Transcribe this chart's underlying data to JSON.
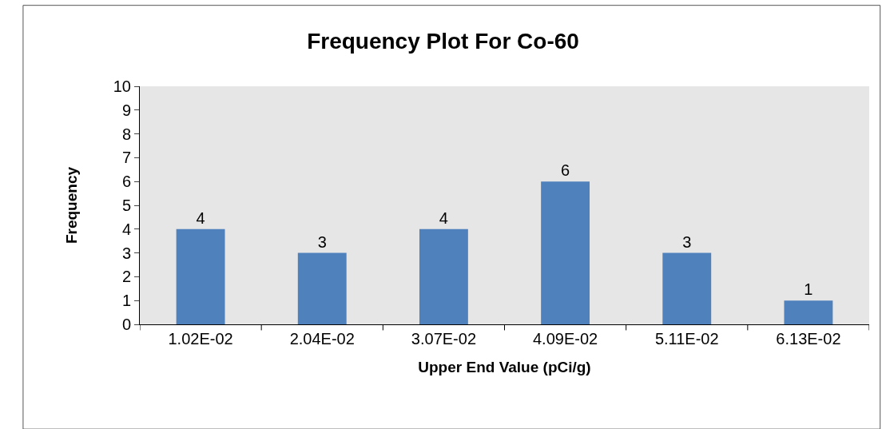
{
  "chart_data": {
    "type": "bar",
    "title": "Frequency Plot For Co-60",
    "xlabel": "Upper End Value (pCi/g)",
    "ylabel": "Frequency",
    "categories": [
      "1.02E-02",
      "2.04E-02",
      "3.07E-02",
      "4.09E-02",
      "5.11E-02",
      "6.13E-02"
    ],
    "values": [
      4,
      3,
      4,
      6,
      3,
      1
    ],
    "color": "#4f81bd",
    "ylim": [
      0,
      10
    ],
    "yticks": [
      0,
      1,
      2,
      3,
      4,
      5,
      6,
      7,
      8,
      9,
      10
    ],
    "grid": false,
    "data_labels": true
  }
}
